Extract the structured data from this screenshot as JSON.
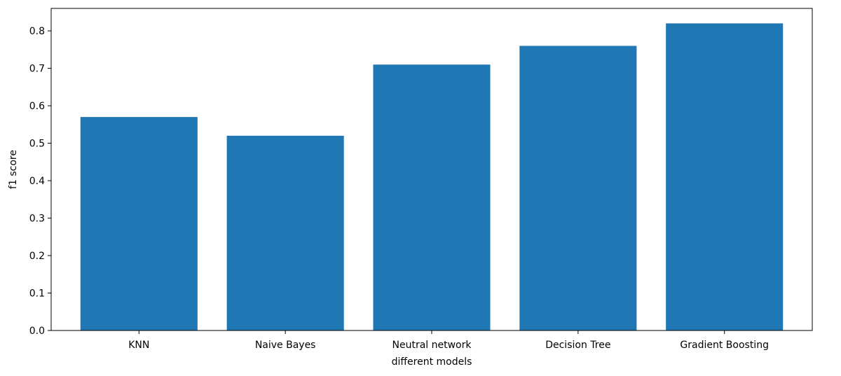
{
  "chart_data": {
    "type": "bar",
    "title": "",
    "xlabel": "different models",
    "ylabel": "f1 score",
    "categories": [
      "KNN",
      "Naive Bayes",
      "Neutral network",
      "Decision Tree",
      "Gradient Boosting"
    ],
    "values": [
      0.57,
      0.52,
      0.71,
      0.76,
      0.82
    ],
    "ylim": [
      0,
      0.86
    ],
    "yticks": [
      "0.0",
      "0.1",
      "0.2",
      "0.3",
      "0.4",
      "0.5",
      "0.6",
      "0.7",
      "0.8"
    ],
    "bar_color": "#1f77b4",
    "grid": false,
    "legend": "none"
  }
}
